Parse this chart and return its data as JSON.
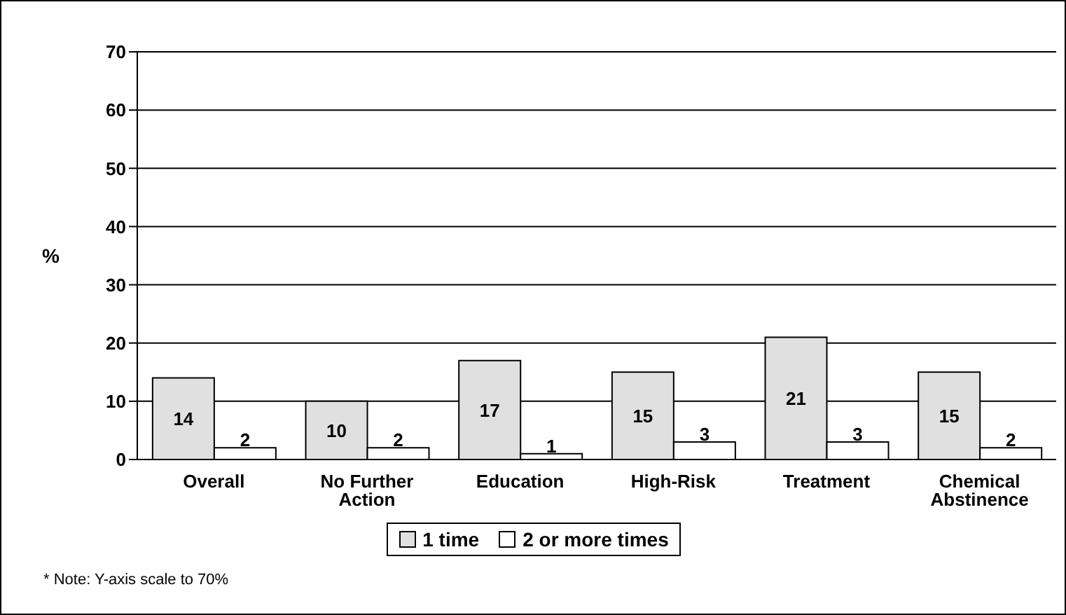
{
  "chart_data": {
    "type": "bar",
    "ylabel": "%",
    "categories": [
      "Overall",
      "No Further Action",
      "Education",
      "High-Risk",
      "Treatment",
      "Chemical Abstinence"
    ],
    "series": [
      {
        "name": "1 time",
        "color": "#e0e0e0",
        "values": [
          14,
          10,
          17,
          15,
          21,
          15
        ]
      },
      {
        "name": "2 or more times",
        "color": "#ffffff",
        "values": [
          2,
          2,
          1,
          3,
          3,
          2
        ]
      }
    ],
    "ylim": [
      0,
      70
    ],
    "yticks": [
      0,
      10,
      20,
      30,
      40,
      50,
      60,
      70
    ],
    "grid": "y",
    "legend": "bottom",
    "data_labels": true,
    "annotations": [
      "* Note: Y-axis scale to 70%"
    ]
  }
}
